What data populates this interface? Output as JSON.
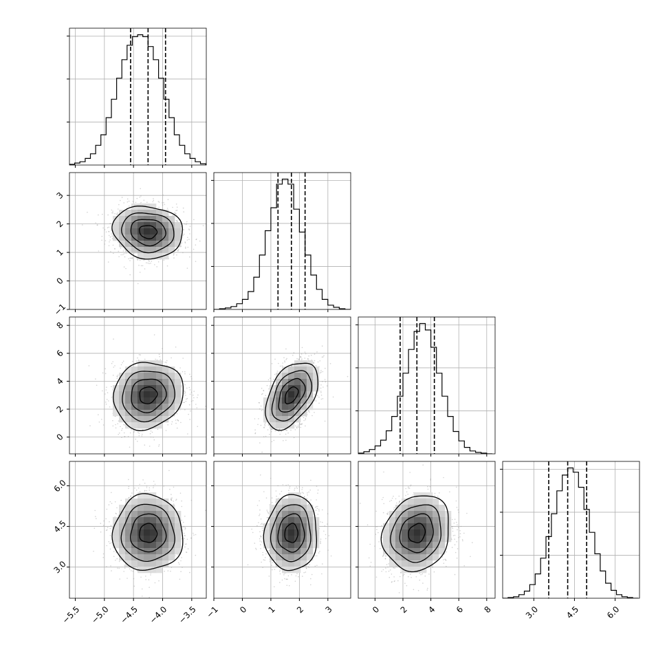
{
  "chart_data": {
    "type": "corner",
    "n_params": 4,
    "title": "",
    "params": [
      {
        "ticks": [
          "−5.5",
          "−5.0",
          "−4.5",
          "−4.0",
          "−3.5"
        ],
        "tick_values": [
          -5.5,
          -5.0,
          -4.5,
          -4.0,
          -3.5
        ],
        "range": [
          -5.6,
          -3.25
        ],
        "quantiles": [
          -4.55,
          -4.25,
          -3.95
        ],
        "hist_bins": [
          -5.6,
          -5.51,
          -5.42,
          -5.33,
          -5.24,
          -5.15,
          -5.06,
          -4.97,
          -4.88,
          -4.79,
          -4.7,
          -4.61,
          -4.52,
          -4.43,
          -4.34,
          -4.25,
          -4.16,
          -4.07,
          -3.98,
          -3.89,
          -3.8,
          -3.71,
          -3.62,
          -3.53,
          -3.44,
          -3.35,
          -3.26
        ],
        "hist_counts": [
          1,
          3,
          5,
          10,
          17,
          30,
          46,
          72,
          100,
          132,
          160,
          182,
          195,
          198,
          195,
          180,
          160,
          132,
          100,
          72,
          46,
          30,
          17,
          10,
          5,
          2
        ],
        "hist_yticks": [
          0.33,
          0.66,
          0.99
        ]
      },
      {
        "ticks": [
          "−1",
          "0",
          "1",
          "2",
          "3"
        ],
        "tick_values": [
          -1,
          0,
          1,
          2,
          3
        ],
        "range": [
          -1.0,
          3.8
        ],
        "quantiles": [
          1.25,
          1.72,
          2.2
        ],
        "hist_bins": [
          -1.0,
          -0.8,
          -0.6,
          -0.4,
          -0.2,
          0.0,
          0.2,
          0.4,
          0.6,
          0.8,
          1.0,
          1.2,
          1.4,
          1.6,
          1.8,
          2.0,
          2.2,
          2.4,
          2.6,
          2.8,
          3.0,
          3.2,
          3.4,
          3.6,
          3.8
        ],
        "hist_counts": [
          0,
          1,
          2,
          4,
          8,
          14,
          25,
          45,
          76,
          110,
          142,
          175,
          182,
          175,
          140,
          108,
          76,
          48,
          28,
          14,
          6,
          3,
          1,
          0
        ],
        "hist_yticks": [
          0.33,
          0.66,
          0.99
        ]
      },
      {
        "ticks": [
          "0",
          "2",
          "4",
          "6",
          "8"
        ],
        "tick_values": [
          0,
          2,
          4,
          6,
          8
        ],
        "range": [
          -1.2,
          8.6
        ],
        "quantiles": [
          1.8,
          3.0,
          4.25
        ],
        "hist_bins": [
          -1.2,
          -0.8,
          -0.4,
          0.0,
          0.4,
          0.8,
          1.2,
          1.6,
          2.0,
          2.4,
          2.8,
          3.2,
          3.6,
          4.0,
          4.4,
          4.8,
          5.2,
          5.6,
          6.0,
          6.4,
          6.8,
          7.2,
          7.6,
          8.0,
          8.4
        ],
        "hist_counts": [
          1,
          3,
          6,
          11,
          19,
          32,
          52,
          80,
          112,
          145,
          170,
          181,
          172,
          148,
          112,
          80,
          52,
          31,
          18,
          9,
          4,
          2,
          1,
          0
        ],
        "hist_yticks": [
          0.33,
          0.66,
          0.99
        ]
      },
      {
        "ticks": [
          "3.0",
          "4.5",
          "6.0"
        ],
        "tick_values": [
          3.0,
          4.5,
          6.0
        ],
        "range": [
          1.85,
          6.9
        ],
        "quantiles": [
          3.55,
          4.25,
          4.95
        ],
        "hist_bins": [
          1.85,
          2.05,
          2.25,
          2.45,
          2.65,
          2.85,
          3.05,
          3.25,
          3.45,
          3.65,
          3.85,
          4.05,
          4.25,
          4.45,
          4.65,
          4.85,
          5.05,
          5.25,
          5.45,
          5.65,
          5.85,
          6.05,
          6.25,
          6.45,
          6.65,
          6.85
        ],
        "hist_counts": [
          0,
          1,
          2,
          5,
          10,
          19,
          34,
          56,
          86,
          118,
          150,
          172,
          182,
          176,
          155,
          124,
          92,
          62,
          38,
          21,
          11,
          5,
          2,
          1,
          0
        ],
        "hist_yticks": [
          0.33,
          0.66,
          0.99
        ]
      }
    ],
    "panels_2d": [
      {
        "x": 0,
        "y": 1,
        "center": [
          -4.25,
          1.72
        ],
        "sd": [
          0.3,
          0.46
        ],
        "rho": -0.1
      },
      {
        "x": 0,
        "y": 2,
        "center": [
          -4.25,
          3.0
        ],
        "sd": [
          0.3,
          1.2
        ],
        "rho": 0.1
      },
      {
        "x": 1,
        "y": 2,
        "center": [
          1.72,
          3.0
        ],
        "sd": [
          0.46,
          1.2
        ],
        "rho": 0.45
      },
      {
        "x": 0,
        "y": 3,
        "center": [
          -4.25,
          4.25
        ],
        "sd": [
          0.3,
          0.7
        ],
        "rho": 0.0
      },
      {
        "x": 1,
        "y": 3,
        "center": [
          1.72,
          4.25
        ],
        "sd": [
          0.46,
          0.7
        ],
        "rho": 0.05
      },
      {
        "x": 2,
        "y": 3,
        "center": [
          3.0,
          4.25
        ],
        "sd": [
          1.2,
          0.7
        ],
        "rho": 0.15
      }
    ],
    "contour_levels_sigma": [
      0.5,
      1.0,
      1.5,
      2.0
    ],
    "grid": true,
    "colors": {
      "line": "#000000",
      "grid": "#b0b0b0",
      "scatter": "#9a9a9a",
      "density_dark": "#333333"
    }
  }
}
